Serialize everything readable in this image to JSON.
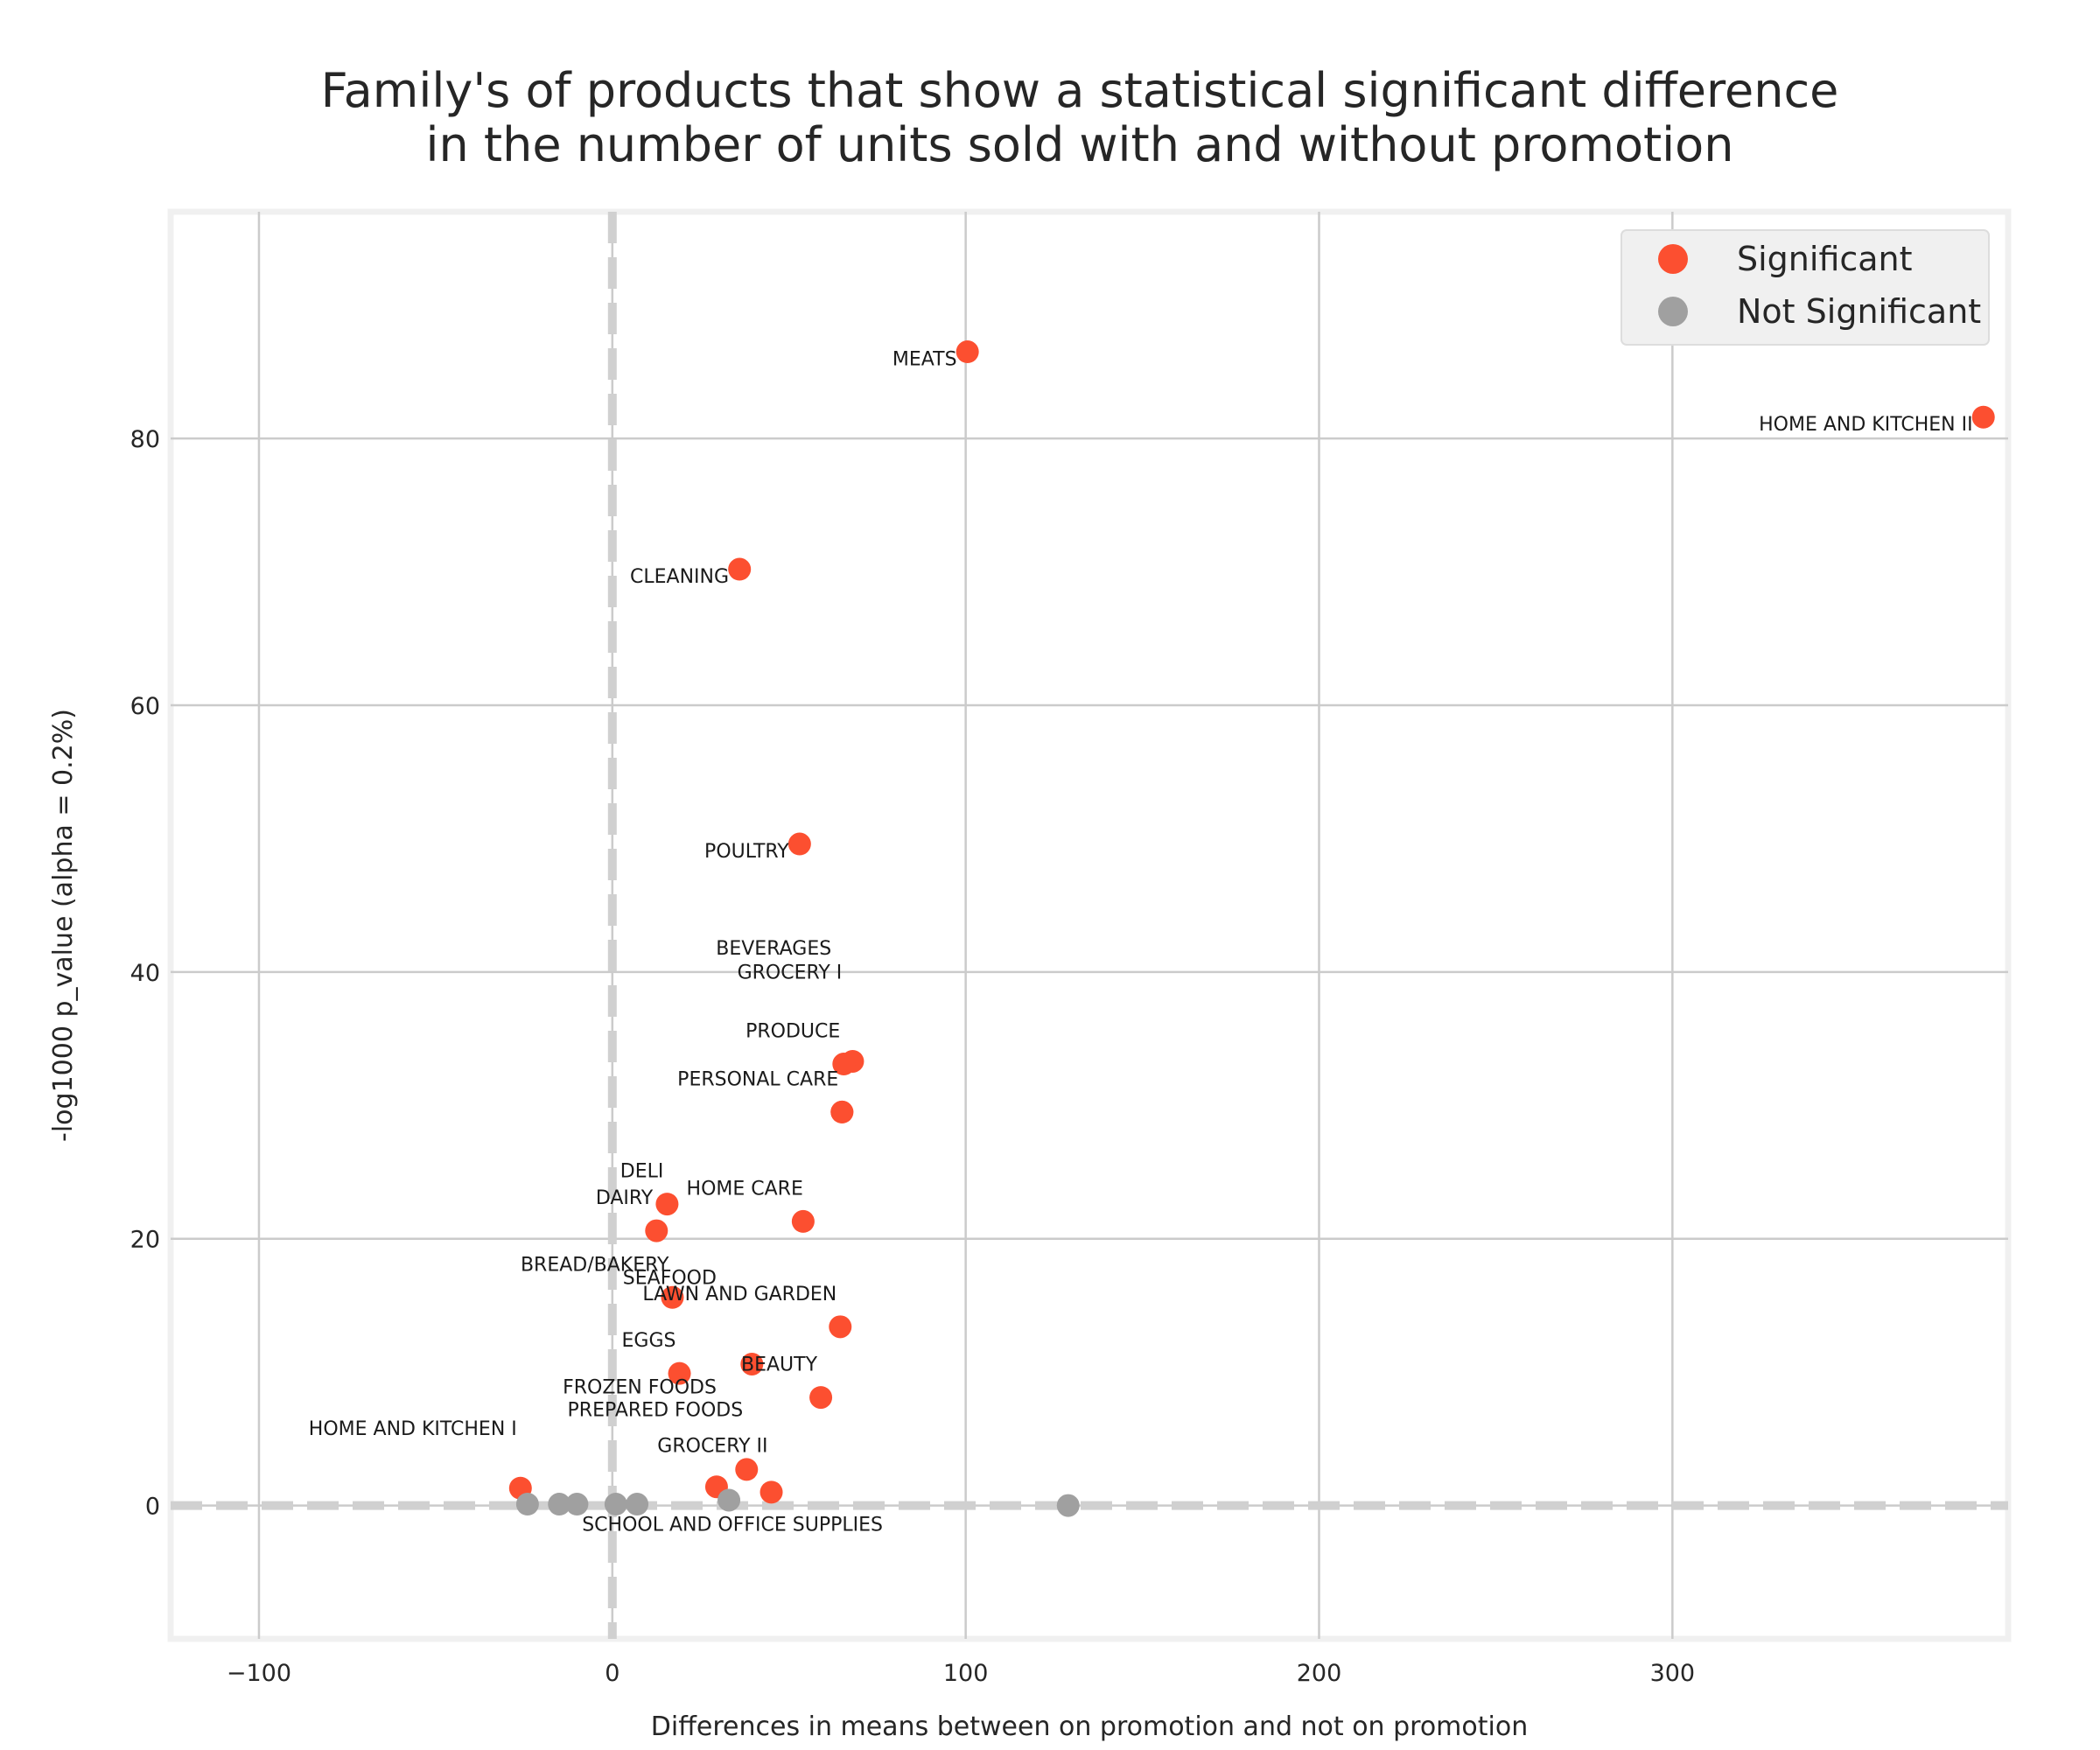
{
  "chart_data": {
    "type": "scatter",
    "title": [
      "Family's of products that show a statistical significant difference",
      "in the number of units sold with and without promotion"
    ],
    "xlabel": "Differences in means between on promotion and not on promotion",
    "ylabel": "-log1000 p_value (alpha = 0.2%)",
    "xlim": [
      -125,
      395
    ],
    "ylim": [
      -10,
      97
    ],
    "xticks": [
      -100,
      0,
      100,
      200,
      300
    ],
    "yticks": [
      0,
      20,
      40,
      60,
      80
    ],
    "grid": true,
    "legend_position": "top-right",
    "reference_lines": {
      "x": 0,
      "y": 0,
      "style": "dashed"
    },
    "colors": {
      "significant": "#fc4f30",
      "not_significant": "#a0a0a0",
      "grid": "#cbcbcb",
      "frame": "#f0f0f0",
      "reference": "#d0d0d0"
    },
    "series": [
      {
        "name": "Significant",
        "points": [
          {
            "label": "MEATS",
            "x": 100.5,
            "y": 86.5
          },
          {
            "label": "HOME AND KITCHEN II",
            "x": 388,
            "y": 81.6
          },
          {
            "label": "CLEANING",
            "x": 36,
            "y": 70.2
          },
          {
            "label": "POULTRY",
            "x": 53,
            "y": 49.6
          },
          {
            "label": "BEVERAGES",
            "x": 68,
            "y": 33.3
          },
          {
            "label": "PRODUCE",
            "x": 65.5,
            "y": 33.1
          },
          {
            "label": "GROCERY I",
            "x": 65,
            "y": 29.5
          },
          {
            "label": "PERSONAL CARE",
            "x": 65,
            "y": 29.5
          },
          {
            "label": "DELI",
            "x": 15.5,
            "y": 22.6
          },
          {
            "label": "HOME CARE",
            "x": 54,
            "y": 21.3
          },
          {
            "label": "DAIRY",
            "x": 12.5,
            "y": 20.6
          },
          {
            "label": "BREAD/BAKERY",
            "x": 17,
            "y": 15.6
          },
          {
            "label": "LAWN AND GARDEN",
            "x": 64.5,
            "y": 13.4
          },
          {
            "label": "SEAFOOD",
            "x": 39.5,
            "y": 10.6
          },
          {
            "label": "EGGS",
            "x": 19,
            "y": 9.9
          },
          {
            "label": "BEAUTY",
            "x": 59,
            "y": 8.1
          },
          {
            "label": "PREPARED FOODS",
            "x": 38,
            "y": 2.7
          },
          {
            "label": "HOME AND KITCHEN I",
            "x": -26,
            "y": 1.3
          },
          {
            "label": "FROZEN FOODS",
            "x": 29.5,
            "y": 1.4
          },
          {
            "label": "GROCERY II",
            "x": 45,
            "y": 1.0
          }
        ]
      },
      {
        "name": "Not Significant",
        "points": [
          {
            "label": "SCHOOL AND OFFICE SUPPLIES",
            "x": -24,
            "y": 0.1
          },
          {
            "label": "",
            "x": -15,
            "y": 0.1
          },
          {
            "label": "",
            "x": -10,
            "y": 0.1
          },
          {
            "label": "",
            "x": 1,
            "y": 0.1
          },
          {
            "label": "",
            "x": 7,
            "y": 0.1
          },
          {
            "label": "",
            "x": 33,
            "y": 0.4
          },
          {
            "label": "",
            "x": 129,
            "y": 0.0
          }
        ]
      }
    ],
    "label_offsets_hint": "labels drawn left of point"
  }
}
